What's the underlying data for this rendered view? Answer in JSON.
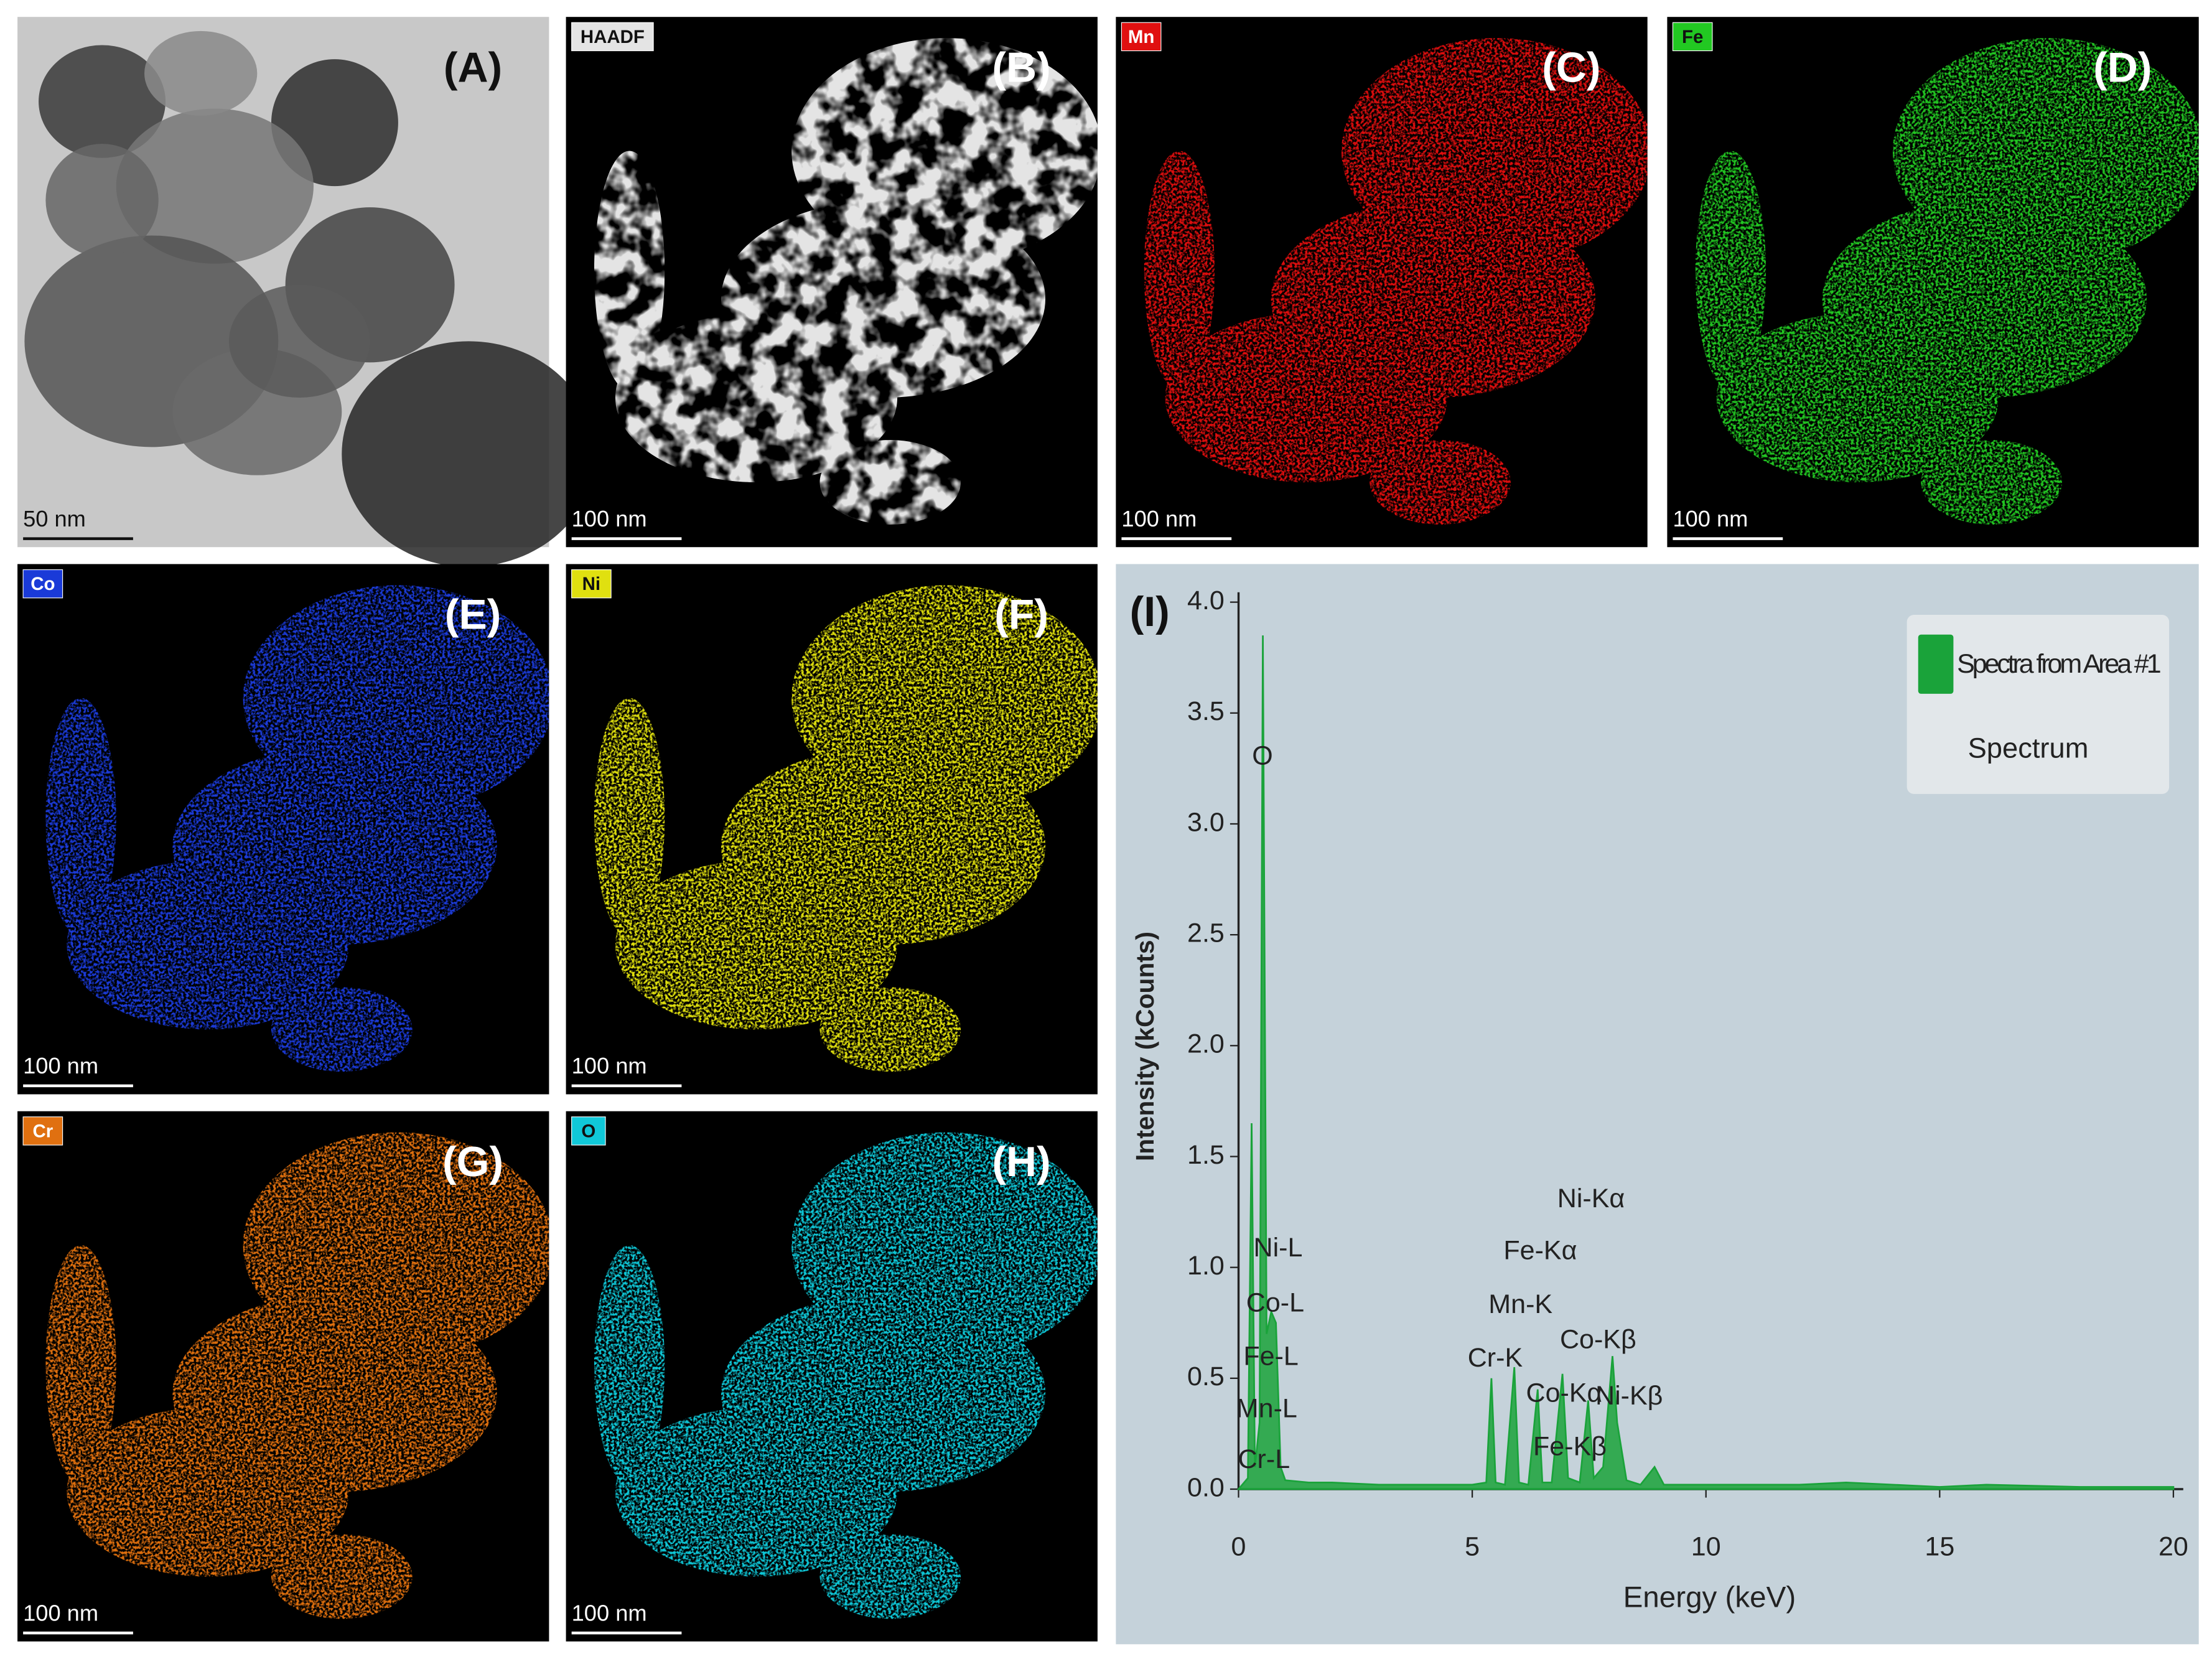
{
  "panels": [
    {
      "label": "(A)",
      "scale": "50 nm"
    },
    {
      "label": "(B)",
      "tag": "HAADF",
      "scale": "100 nm",
      "color": "#e4e4e4"
    },
    {
      "label": "(C)",
      "tag": "Mn",
      "scale": "100 nm",
      "color": "#e01010"
    },
    {
      "label": "(D)",
      "tag": "Fe",
      "scale": "100 nm",
      "color": "#22c822"
    },
    {
      "label": "(E)",
      "tag": "Co",
      "scale": "100 nm",
      "color": "#1a3ad8"
    },
    {
      "label": "(F)",
      "tag": "Ni",
      "scale": "100 nm",
      "color": "#e0e010"
    },
    {
      "label": "(G)",
      "tag": "Cr",
      "scale": "100 nm",
      "color": "#e07010"
    },
    {
      "label": "(H)",
      "tag": "O",
      "scale": "100 nm",
      "color": "#10c8d8"
    }
  ],
  "chart_data": {
    "type": "area",
    "title": "(I)",
    "x_label": "Energy (keV)",
    "y_label": "Intensity (kCounts)",
    "x": [
      0,
      0.2,
      0.28,
      0.35,
      0.45,
      0.52,
      0.6,
      0.7,
      0.8,
      0.9,
      1.0,
      1.5,
      2,
      3,
      4,
      5,
      5.3,
      5.41,
      5.5,
      5.7,
      5.9,
      6.0,
      6.2,
      6.4,
      6.5,
      6.7,
      6.93,
      7.05,
      7.3,
      7.48,
      7.6,
      7.8,
      8.0,
      8.1,
      8.3,
      8.6,
      8.9,
      9.1,
      10,
      12,
      13,
      15,
      16,
      18,
      20
    ],
    "series": [
      {
        "name": "Spectra from Area #1",
        "color": "#1aa33a",
        "values": [
          0,
          0.05,
          1.65,
          0.1,
          0.3,
          3.85,
          0.7,
          0.8,
          0.75,
          0.1,
          0.04,
          0.03,
          0.03,
          0.02,
          0.02,
          0.02,
          0.03,
          0.5,
          0.03,
          0.02,
          0.55,
          0.03,
          0.02,
          0.45,
          0.03,
          0.03,
          0.52,
          0.05,
          0.03,
          0.4,
          0.05,
          0.1,
          0.6,
          0.3,
          0.04,
          0.02,
          0.1,
          0.02,
          0.02,
          0.02,
          0.03,
          0.01,
          0.02,
          0.01,
          0.01
        ]
      }
    ],
    "legend_note": "Spectrum",
    "annotations": [
      "O",
      "Ni-L",
      "Co-L",
      "Fe-L",
      "Mn-L",
      "Cr-L",
      "Ni-Kα",
      "Fe-Kα",
      "Mn-K",
      "Cr-K",
      "Co-Kβ",
      "Co-Kα",
      "Ni-Kβ",
      "Fe-Kβ"
    ],
    "xlim": [
      0,
      20
    ],
    "xticks": [
      0,
      5,
      10,
      15,
      20
    ],
    "ylim": [
      0,
      4.0
    ],
    "yticks": [
      {
        "value": 0,
        "label": "0.0"
      },
      0.5,
      {
        "value": 1,
        "label": "1.0"
      },
      1.5,
      {
        "value": 2,
        "label": "2.0"
      },
      2.5,
      {
        "value": 3,
        "label": "3.0"
      },
      3.5,
      {
        "value": 4,
        "label": "4.0"
      }
    ],
    "legend": "top-right"
  }
}
